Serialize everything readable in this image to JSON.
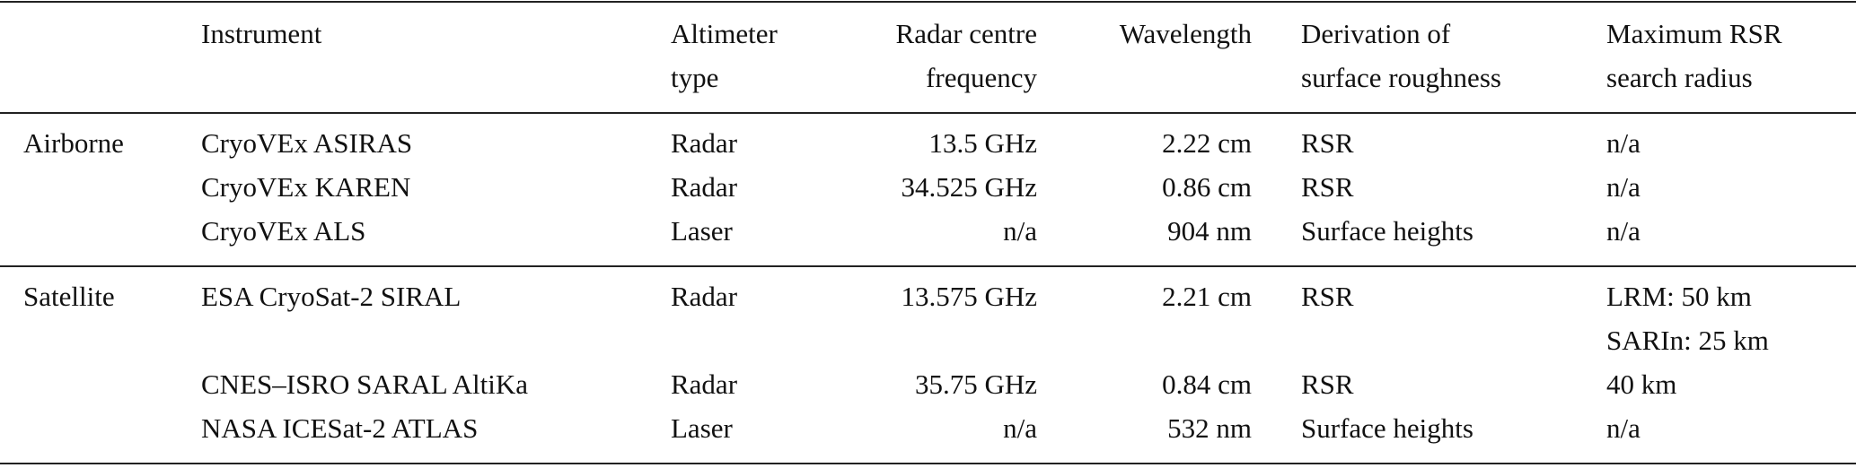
{
  "table": {
    "header": [
      [
        "Instrument"
      ],
      [
        "Altimeter",
        "type"
      ],
      [
        "Radar centre",
        "frequency"
      ],
      [
        "Wavelength"
      ],
      [
        "Derivation of",
        "surface roughness"
      ],
      [
        "Maximum RSR",
        "search radius"
      ]
    ],
    "groups": [
      {
        "label": "Airborne",
        "rows": [
          [
            [
              "CryoVEx ASIRAS"
            ],
            [
              "Radar"
            ],
            [
              "13.5 GHz"
            ],
            [
              "2.22 cm"
            ],
            [
              "RSR"
            ],
            [
              "n/a"
            ]
          ],
          [
            [
              "CryoVEx KAREN"
            ],
            [
              "Radar"
            ],
            [
              "34.525 GHz"
            ],
            [
              "0.86 cm"
            ],
            [
              "RSR"
            ],
            [
              "n/a"
            ]
          ],
          [
            [
              "CryoVEx ALS"
            ],
            [
              "Laser"
            ],
            [
              "n/a"
            ],
            [
              "904 nm"
            ],
            [
              "Surface heights"
            ],
            [
              "n/a"
            ]
          ]
        ]
      },
      {
        "label": "Satellite",
        "rows": [
          [
            [
              "ESA CryoSat-2 SIRAL"
            ],
            [
              "Radar"
            ],
            [
              "13.575 GHz"
            ],
            [
              "2.21 cm"
            ],
            [
              "RSR"
            ],
            [
              "LRM: 50 km",
              "SARIn: 25 km"
            ]
          ],
          [
            [
              "CNES–ISRO SARAL AltiKa"
            ],
            [
              "Radar"
            ],
            [
              "35.75 GHz"
            ],
            [
              "0.84 cm"
            ],
            [
              "RSR"
            ],
            [
              "40 km"
            ]
          ],
          [
            [
              "NASA ICESat-2 ATLAS"
            ],
            [
              "Laser"
            ],
            [
              "n/a"
            ],
            [
              "532 nm"
            ],
            [
              "Surface heights"
            ],
            [
              "n/a"
            ]
          ]
        ]
      }
    ]
  }
}
